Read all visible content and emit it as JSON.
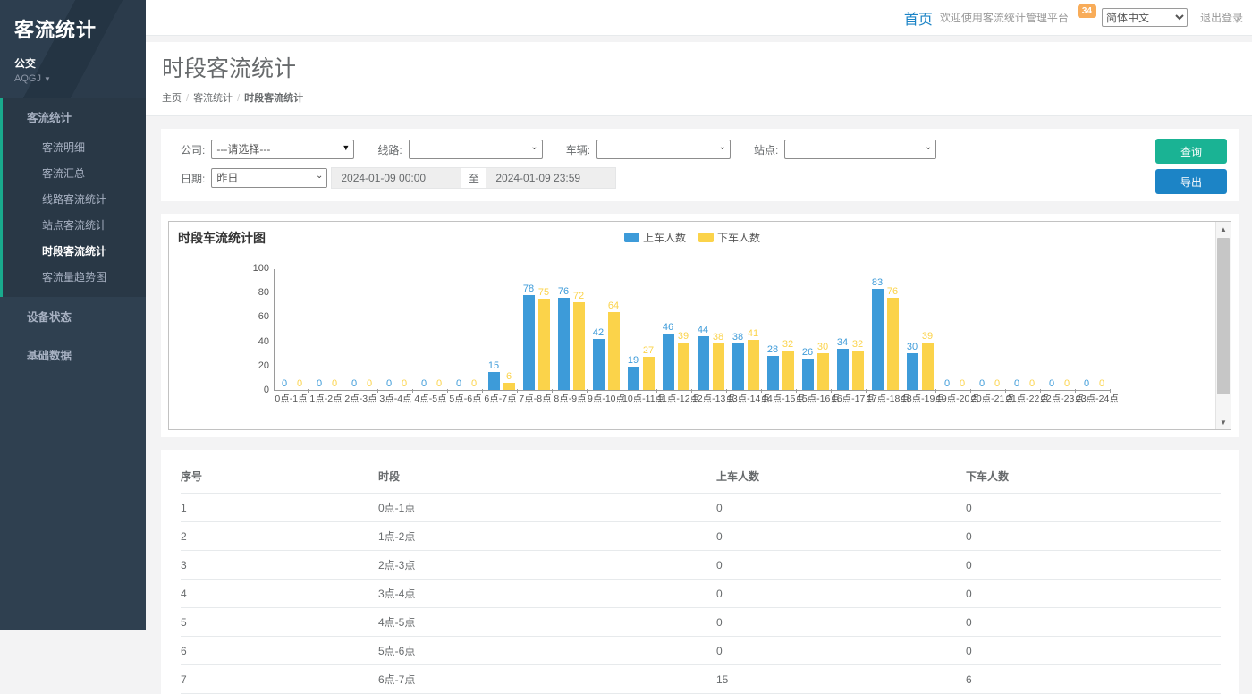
{
  "sidebar": {
    "logo": "客流统计",
    "org": "公交",
    "user": "AQGJ",
    "group": {
      "label": "客流统计",
      "children": [
        "客流明细",
        "客流汇总",
        "线路客流统计",
        "站点客流统计",
        "时段客流统计",
        "客流量趋势图"
      ],
      "active_child": "时段客流统计"
    },
    "items": [
      "设备状态",
      "基础数据"
    ]
  },
  "topbar": {
    "home_link": "首页",
    "welcome": "欢迎使用客流统计管理平台",
    "badge": "34",
    "language": "简体中文",
    "logout": "退出登录"
  },
  "page": {
    "title": "时段客流统计",
    "breadcrumb": [
      "主页",
      "客流统计",
      "时段客流统计"
    ]
  },
  "filters": {
    "company_label": "公司:",
    "company_value": "---请选择---",
    "line_label": "线路:",
    "vehicle_label": "车辆:",
    "station_label": "站点:",
    "date_label": "日期:",
    "date_preset": "昨日",
    "date_from": "2024-01-09 00:00",
    "date_to_separator": "至",
    "date_to": "2024-01-09 23:59",
    "query_button": "查询",
    "export_button": "导出"
  },
  "chart_data": {
    "type": "bar",
    "title": "时段车流统计图",
    "categories": [
      "0点-1点",
      "1点-2点",
      "2点-3点",
      "3点-4点",
      "4点-5点",
      "5点-6点",
      "6点-7点",
      "7点-8点",
      "8点-9点",
      "9点-10点",
      "10点-11点",
      "11点-12点",
      "12点-13点",
      "13点-14点",
      "14点-15点",
      "15点-16点",
      "16点-17点",
      "17点-18点",
      "18点-19点",
      "19点-20点",
      "20点-21点",
      "21点-22点",
      "22点-23点",
      "23点-24点"
    ],
    "series": [
      {
        "name": "上车人数",
        "color": "#3d9bd9",
        "values": [
          0,
          0,
          0,
          0,
          0,
          0,
          15,
          78,
          76,
          42,
          19,
          46,
          44,
          38,
          28,
          26,
          34,
          83,
          30,
          0,
          0,
          0,
          0,
          0
        ]
      },
      {
        "name": "下车人数",
        "color": "#fbd34a",
        "values": [
          0,
          0,
          0,
          0,
          0,
          0,
          6,
          75,
          72,
          64,
          27,
          39,
          38,
          41,
          32,
          30,
          32,
          76,
          39,
          0,
          0,
          0,
          0,
          0
        ]
      }
    ],
    "ylim": [
      0,
      100
    ],
    "yticks": [
      0,
      20,
      40,
      60,
      80,
      100
    ],
    "legend_position": "top-center",
    "grid": false
  },
  "table": {
    "columns": [
      "序号",
      "时段",
      "上车人数",
      "下车人数"
    ],
    "rows": [
      [
        "1",
        "0点-1点",
        "0",
        "0"
      ],
      [
        "2",
        "1点-2点",
        "0",
        "0"
      ],
      [
        "3",
        "2点-3点",
        "0",
        "0"
      ],
      [
        "4",
        "3点-4点",
        "0",
        "0"
      ],
      [
        "5",
        "4点-5点",
        "0",
        "0"
      ],
      [
        "6",
        "5点-6点",
        "0",
        "0"
      ],
      [
        "7",
        "6点-7点",
        "15",
        "6"
      ]
    ]
  }
}
